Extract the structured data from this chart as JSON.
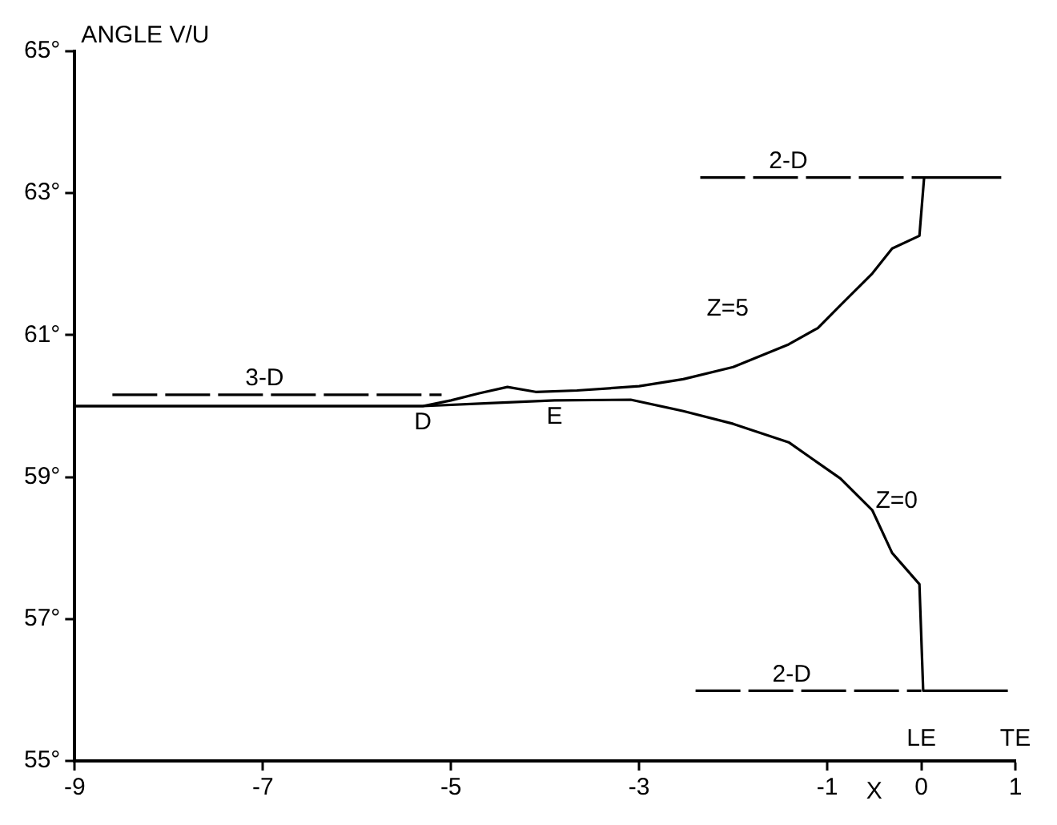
{
  "chart_data": {
    "type": "line",
    "ylabel": "ANGLE V/U",
    "xlabel": "X",
    "xlim": [
      -9,
      1
    ],
    "xticks": [
      -9,
      -7,
      -5,
      -3,
      -1,
      0,
      1
    ],
    "ylim": [
      55,
      65
    ],
    "yticks": [
      {
        "value": 55,
        "label": "55°"
      },
      {
        "value": 57,
        "label": "57°"
      },
      {
        "value": 59,
        "label": "59°"
      },
      {
        "value": 61,
        "label": "61°"
      },
      {
        "value": 63,
        "label": "63°"
      },
      {
        "value": 65,
        "label": "65°"
      }
    ],
    "grid": false,
    "legend": false,
    "marker": "none",
    "series": [
      {
        "name": "Z=5",
        "color": "#000000",
        "line_style": "solid",
        "x": [
          -9,
          -6,
          -5.3,
          -5,
          -4.7,
          -4.4,
          -4.1,
          -3.66,
          -3,
          -2.53,
          -2,
          -1.41,
          -1.1,
          -0.86,
          -0.52,
          -0.31,
          -0.02,
          0.03,
          0.45,
          0.85
        ],
        "values": [
          60.0,
          60.0,
          60.0,
          60.08,
          60.18,
          60.27,
          60.2,
          60.22,
          60.28,
          60.38,
          60.55,
          60.87,
          61.1,
          61.42,
          61.87,
          62.22,
          62.4,
          63.22,
          63.22,
          63.22
        ]
      },
      {
        "name": "Z=0",
        "color": "#000000",
        "line_style": "solid",
        "x": [
          -9,
          -6,
          -5.3,
          -4.6,
          -3.9,
          -3.09,
          -2.53,
          -2,
          -1.41,
          -0.86,
          -0.52,
          -0.31,
          -0.02,
          0.02,
          0.5,
          0.92
        ],
        "values": [
          60.0,
          60.0,
          60.0,
          60.04,
          60.08,
          60.09,
          59.93,
          59.75,
          59.49,
          58.98,
          58.53,
          57.93,
          57.49,
          55.99,
          55.99,
          55.99
        ]
      },
      {
        "name": "3-D",
        "color": "#000000",
        "line_style": "dashed",
        "x": [
          -8.6,
          -5.1
        ],
        "values": [
          60.16,
          60.16
        ]
      },
      {
        "name": "2-D",
        "color": "#000000",
        "line_style": "dashed",
        "x": [
          -2.35,
          0.03
        ],
        "values": [
          63.22,
          63.22
        ]
      },
      {
        "name": "2-D",
        "color": "#000000",
        "line_style": "dashed",
        "x": [
          -2.4,
          0.0
        ],
        "values": [
          55.99,
          55.99
        ]
      }
    ],
    "annotations": [
      {
        "text": "D",
        "x": -5.3,
        "y": 60.0
      },
      {
        "text": "E",
        "x": -3.9,
        "y": 60.08
      },
      "LE",
      "TE"
    ]
  }
}
